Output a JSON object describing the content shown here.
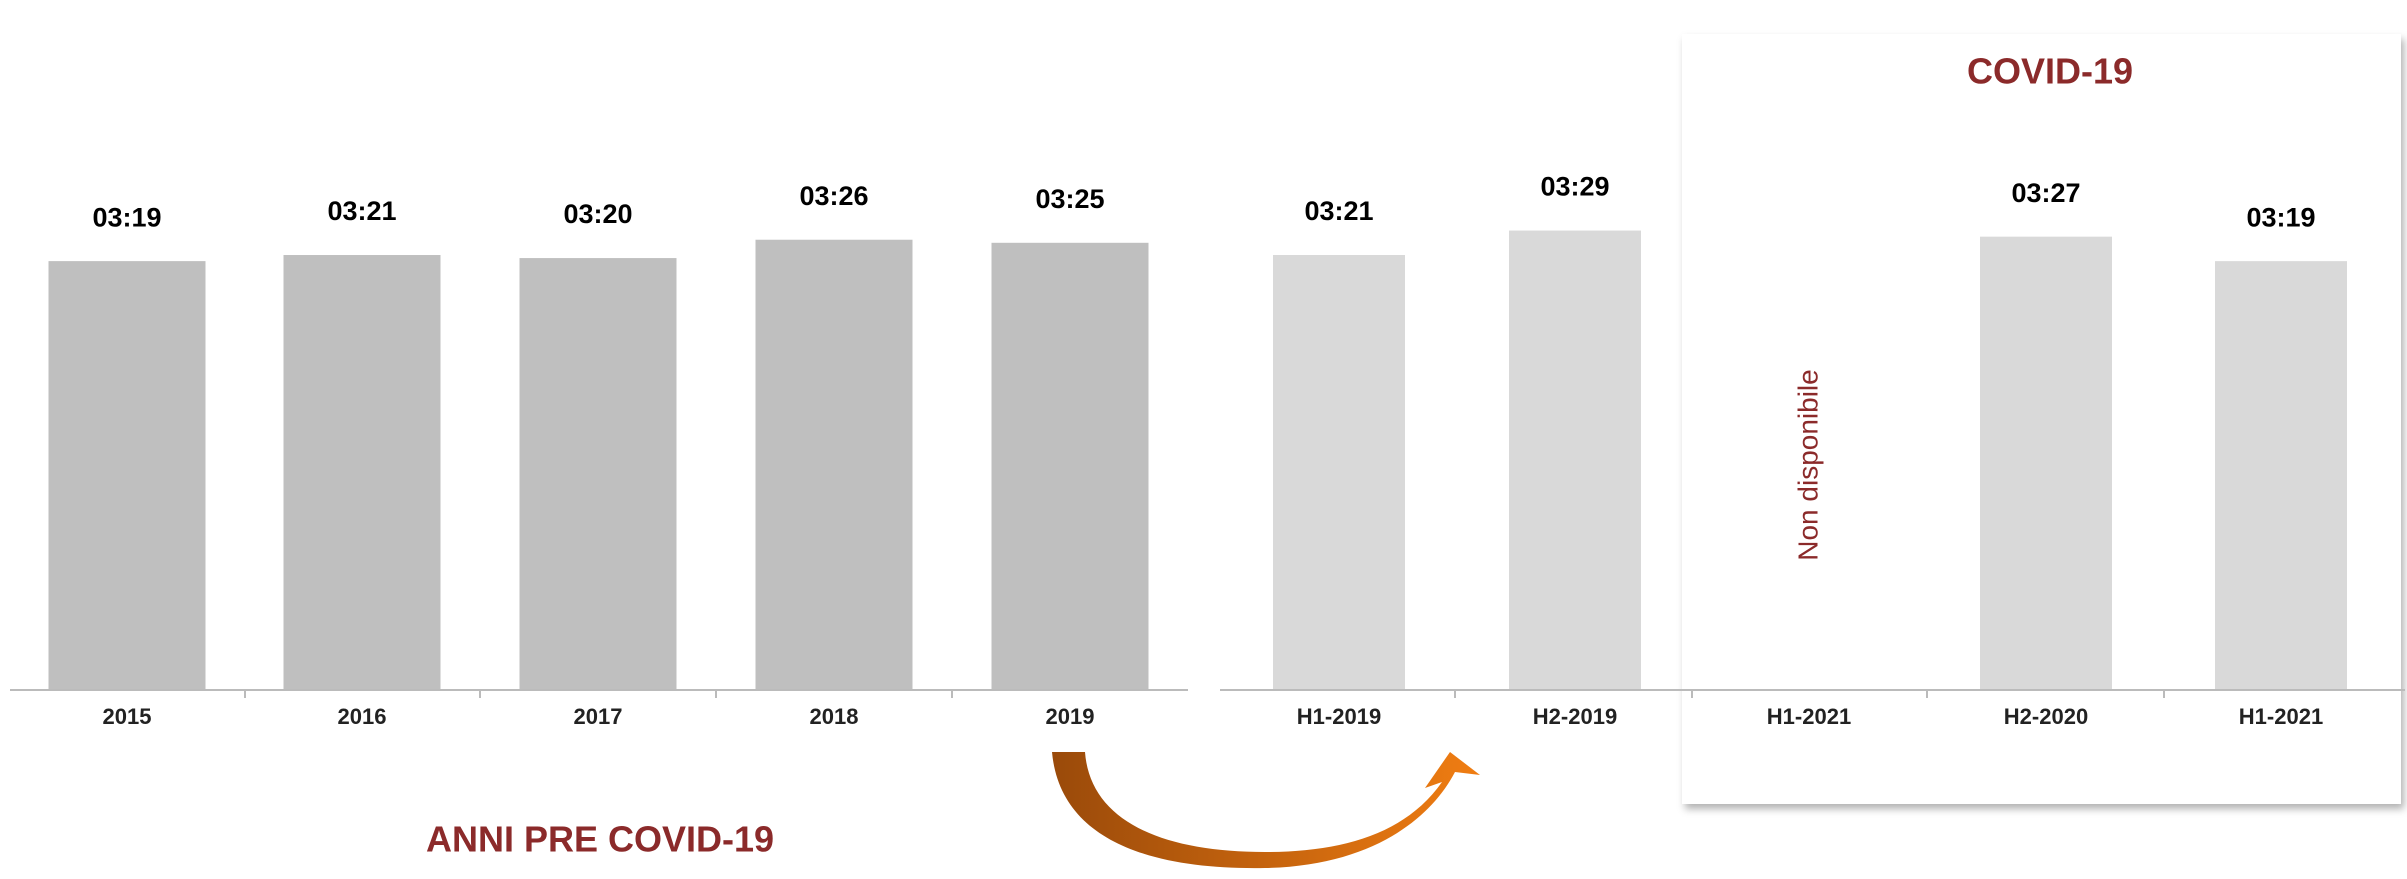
{
  "chart_data": {
    "type": "bar",
    "categories": [
      "2015",
      "2016",
      "2017",
      "2018",
      "2019",
      "H1-2019",
      "H2-2019",
      "H1-2021",
      "H2-2020",
      "H1-2021"
    ],
    "values": [
      199,
      201,
      200,
      206,
      205,
      201,
      209,
      null,
      207,
      199
    ],
    "value_labels": [
      "03:19",
      "03:21",
      "03:20",
      "03:26",
      "03:25",
      "03:21",
      "03:29",
      null,
      "03:27",
      "03:19"
    ],
    "colors": [
      "#bfbfbf",
      "#bfbfbf",
      "#bfbfbf",
      "#bfbfbf",
      "#bfbfbf",
      "#d9d9d9",
      "#d9d9d9",
      "#d9d9d9",
      "#d9d9d9",
      "#d9d9d9"
    ],
    "ylim": [
      59,
      219
    ],
    "annotations": [
      "ANNI PRE COVID-19",
      "COVID-19",
      "Non disponibile"
    ]
  }
}
